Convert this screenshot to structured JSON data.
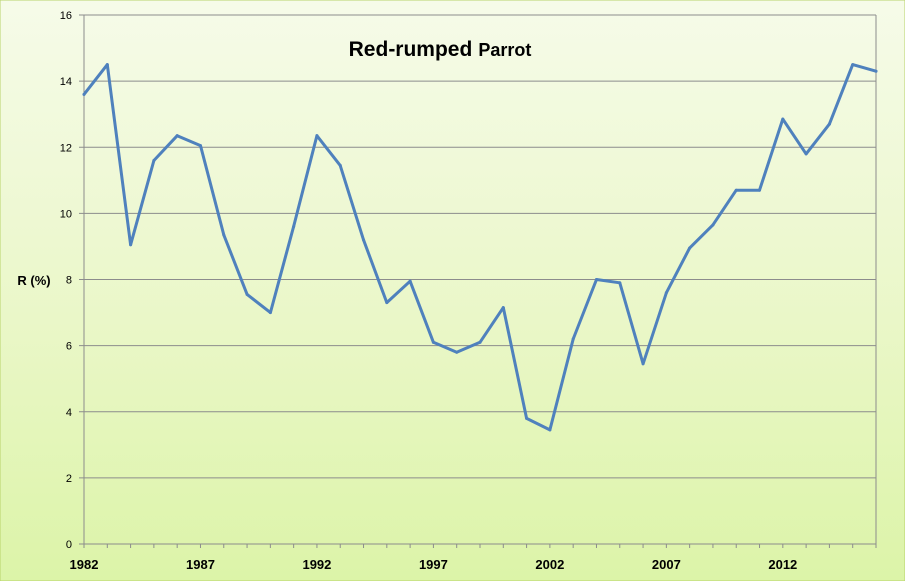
{
  "chart_data": {
    "type": "line",
    "title_main": "Red-rumped",
    "title_sub": "Parrot",
    "ylabel": "R (%)",
    "xlabel": "",
    "ylim": [
      0,
      16
    ],
    "yticks": [
      0,
      2,
      4,
      6,
      8,
      10,
      12,
      14,
      16
    ],
    "xlim": [
      1982,
      2016
    ],
    "xticks": [
      1982,
      1987,
      1992,
      1997,
      2002,
      2007,
      2012
    ],
    "grid": true,
    "series": [
      {
        "color": "#4f81bd",
        "x": [
          1982,
          1983,
          1984,
          1985,
          1986,
          1987,
          1988,
          1989,
          1990,
          1991,
          1992,
          1993,
          1994,
          1995,
          1996,
          1997,
          1998,
          1999,
          2000,
          2001,
          2002,
          2003,
          2004,
          2005,
          2006,
          2007,
          2008,
          2009,
          2010,
          2011,
          2012,
          2013,
          2014,
          2015,
          2016
        ],
        "values": [
          13.6,
          14.5,
          9.05,
          11.6,
          12.35,
          12.05,
          9.35,
          7.55,
          7.0,
          9.6,
          12.35,
          11.45,
          9.2,
          7.3,
          7.95,
          6.1,
          5.8,
          6.1,
          7.15,
          3.8,
          3.45,
          6.2,
          8.0,
          7.9,
          5.45,
          7.6,
          8.95,
          9.65,
          10.7,
          10.7,
          12.85,
          11.8,
          12.7,
          14.5,
          14.3
        ]
      }
    ]
  }
}
